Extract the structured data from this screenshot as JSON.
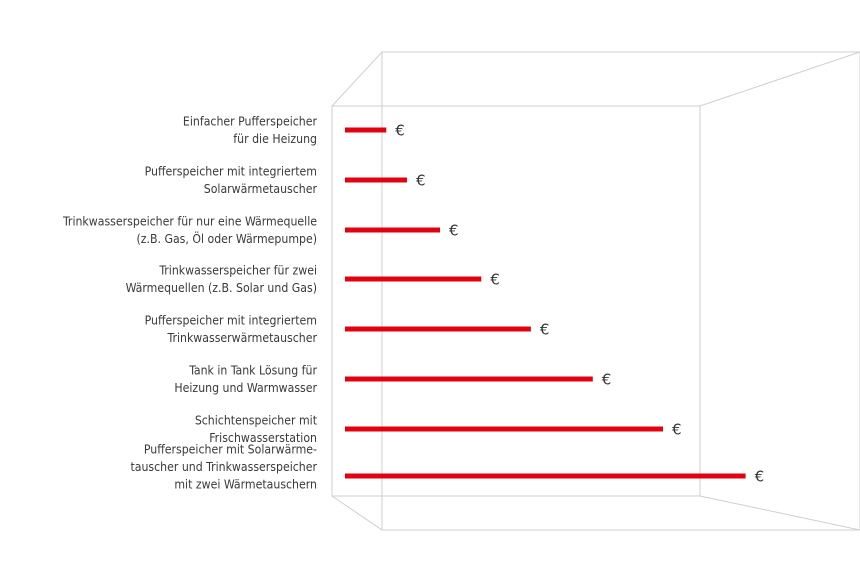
{
  "chart_data": {
    "type": "bar",
    "orientation": "horizontal",
    "title": "",
    "xlabel": "",
    "ylabel": "",
    "categories": [
      [
        "Einfacher Pufferspeicher",
        "für die Heizung"
      ],
      [
        "Pufferspeicher mit integriertem",
        "Solarwärmetauscher"
      ],
      [
        "Trinkwasserspeicher für nur eine Wärmequelle",
        "(z.B. Gas, Öl oder Wärmepumpe)"
      ],
      [
        "Trinkwasserspeicher für zwei",
        "Wärmequellen (z.B. Solar und Gas)"
      ],
      [
        "Pufferspeicher mit integriertem",
        "Trinkwasserwärmetauscher"
      ],
      [
        "Tank in Tank Lösung für",
        "Heizung und Warmwasser"
      ],
      [
        "Schichtenspeicher mit",
        "Frischwasserstation"
      ],
      [
        "Pufferspeicher mit Solarwärme-",
        "tauscher und Trinkwasserspeicher",
        "mit zwei Wärmetauschern"
      ]
    ],
    "values": [
      10,
      15,
      23,
      33,
      45,
      60,
      77,
      97
    ],
    "value_labels": [
      "€",
      "€",
      "€",
      "€",
      "€",
      "€",
      "€",
      "€"
    ],
    "xlim": [
      0,
      100
    ],
    "grid": false,
    "legend": "none",
    "colors": {
      "bar": "#e3000f",
      "box": "#cfcfcf",
      "text": "#3a3a3a"
    }
  }
}
